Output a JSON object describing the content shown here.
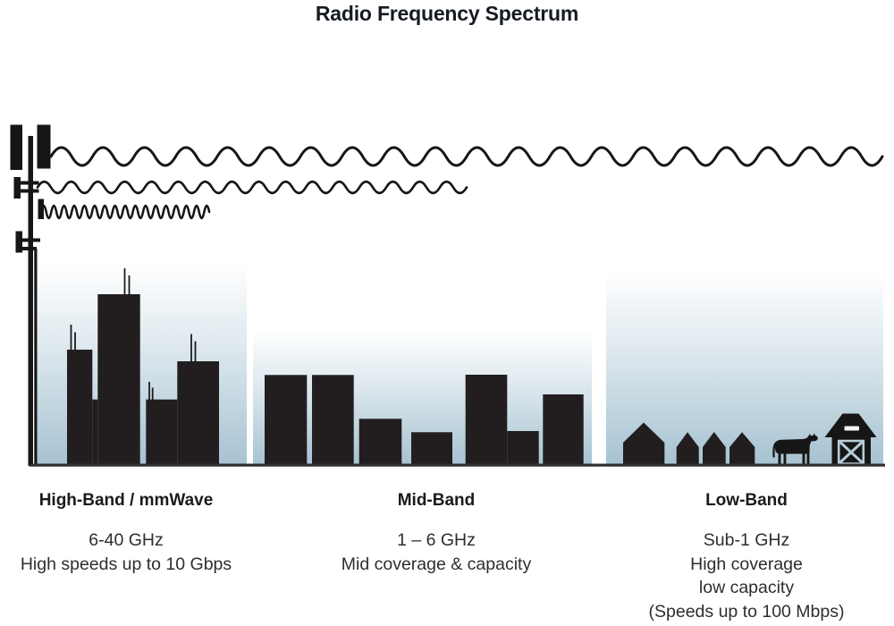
{
  "title": "Radio Frequency Spectrum",
  "bands": [
    {
      "id": "high-band",
      "heading": "High-Band / mmWave",
      "lines": [
        "6-40 GHz",
        "High speeds up to 10 Gbps"
      ]
    },
    {
      "id": "mid-band",
      "heading": "Mid-Band",
      "lines": [
        "1 – 6 GHz",
        "Mid coverage & capacity"
      ]
    },
    {
      "id": "low-band",
      "heading": "Low-Band",
      "lines": [
        "Sub-1 GHz",
        "High coverage",
        "low capacity",
        "(Speeds up to 100 Mbps)"
      ]
    }
  ],
  "icons": {
    "cell_tower": "cell-tower-icon",
    "low_frequency_wave": "long-wave-icon",
    "mid_frequency_wave": "medium-wave-icon",
    "high_frequency_wave": "short-wave-icon",
    "city_skyline": "city-buildings-icon",
    "town_skyline": "mid-buildings-icon",
    "rural_houses": "houses-icon",
    "cow": "cow-icon",
    "barn": "barn-icon"
  },
  "colors": {
    "ink": "#161616",
    "building": "#221e1f",
    "ground": "#2f2f2f",
    "sky_top": "#ffffff",
    "sky_bottom": "#a6c2d1",
    "title_text": "#161b22",
    "body_text": "#2e2e2e"
  }
}
